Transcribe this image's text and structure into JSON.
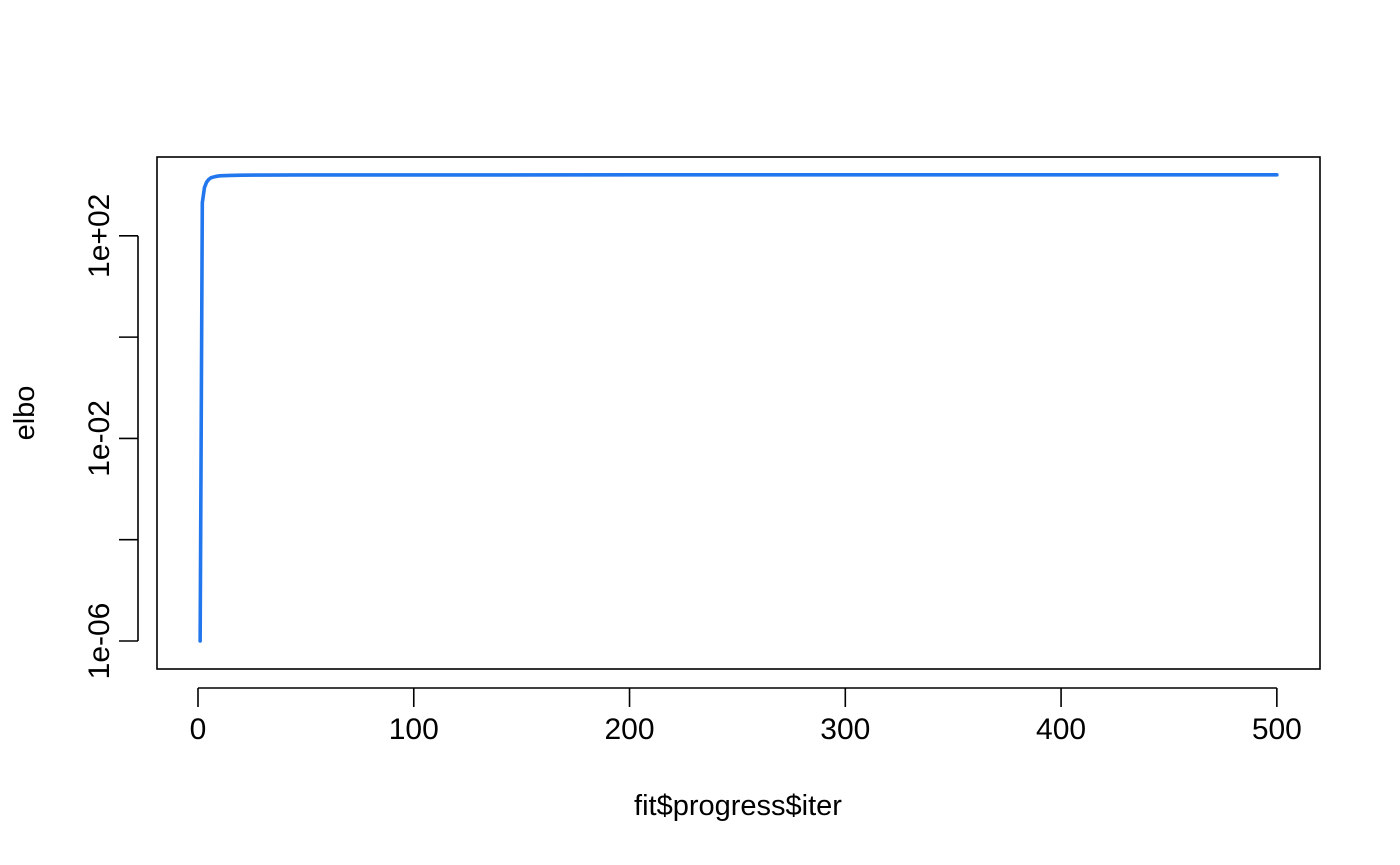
{
  "chart_data": {
    "type": "line",
    "title": "",
    "xlabel": "fit$progress$iter",
    "ylabel": "elbo",
    "xlim": [
      -19,
      520
    ],
    "ylim": [
      2.8e-07,
      3600
    ],
    "ylog": true,
    "grid": false,
    "x_ticks": [
      0,
      100,
      200,
      300,
      400,
      500
    ],
    "x_tick_labels": [
      "0",
      "100",
      "200",
      "300",
      "400",
      "500"
    ],
    "y_ticks": [
      1e-06,
      0.0001,
      0.01,
      1,
      100
    ],
    "y_tick_labels": [
      "1e-06",
      "",
      "1e-02",
      "",
      "1e+02"
    ],
    "colors": {
      "line": "#2277ee",
      "axis": "#000000"
    },
    "series": [
      {
        "x": [
          1,
          2,
          3,
          4,
          5,
          6,
          8,
          10,
          15,
          20,
          30,
          50,
          100,
          200,
          300,
          400,
          500
        ],
        "y": [
          1e-06,
          450,
          900,
          1150,
          1300,
          1400,
          1480,
          1530,
          1560,
          1575,
          1585,
          1590,
          1595,
          1598,
          1599,
          1600,
          1600
        ]
      }
    ]
  }
}
